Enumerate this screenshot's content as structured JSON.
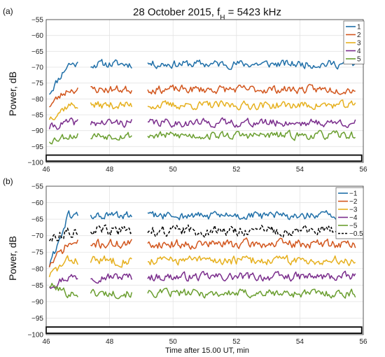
{
  "title": {
    "main": "28 October 2015, f",
    "sub": "H",
    "tail": " = 5423 kHz"
  },
  "colors": {
    "blue": "#1f6fa8",
    "orange": "#d2561d",
    "yellow": "#e6b01e",
    "purple": "#7a2d8c",
    "green": "#6a9e2f",
    "black": "#000000"
  },
  "chart_data": [
    {
      "panel_label": "(a)",
      "type": "line",
      "xlabel": "",
      "ylabel": "Power, dB",
      "xlim": [
        46,
        56
      ],
      "ylim": [
        -100,
        -55
      ],
      "xticks": [
        46,
        48,
        50,
        52,
        54,
        56
      ],
      "yticks": [
        -100,
        -95,
        -90,
        -85,
        -80,
        -75,
        -70,
        -65,
        -60,
        -55
      ],
      "grid": true,
      "legend_position": "top-right",
      "heating_bar": {
        "x_start": 46.0,
        "x_end": 55.95,
        "y_top": -97.7,
        "y_bottom": -99.6
      },
      "segments": [
        [
          46.1,
          47.0
        ],
        [
          47.4,
          48.7
        ],
        [
          49.2,
          55.75
        ]
      ],
      "series": [
        {
          "name": "1",
          "color_key": "blue",
          "dashed": false,
          "start_level": -78,
          "level": -69,
          "jitter": 2.0,
          "seed": 11
        },
        {
          "name": "2",
          "color_key": "orange",
          "dashed": false,
          "start_level": -82,
          "level": -77,
          "jitter": 2.0,
          "seed": 23
        },
        {
          "name": "3",
          "color_key": "yellow",
          "dashed": false,
          "start_level": -86,
          "level": -82,
          "jitter": 2.0,
          "seed": 37
        },
        {
          "name": "4",
          "color_key": "purple",
          "dashed": false,
          "start_level": -89,
          "level": -87.5,
          "jitter": 2.0,
          "seed": 41
        },
        {
          "name": "5",
          "color_key": "green",
          "dashed": false,
          "start_level": -93,
          "level": -91.5,
          "jitter": 2.0,
          "seed": 53
        }
      ]
    },
    {
      "panel_label": "(b)",
      "type": "line",
      "xlabel": "Time after 15.00 UT, min",
      "ylabel": "Power, dB",
      "xlim": [
        46,
        56
      ],
      "ylim": [
        -100,
        -55
      ],
      "xticks": [
        46,
        48,
        50,
        52,
        54,
        56
      ],
      "yticks": [
        -100,
        -95,
        -90,
        -85,
        -80,
        -75,
        -70,
        -65,
        -60,
        -55
      ],
      "grid": true,
      "legend_position": "top-right",
      "heating_bar": {
        "x_start": 46.0,
        "x_end": 55.95,
        "y_top": -97.7,
        "y_bottom": -99.6
      },
      "segments": [
        [
          46.1,
          47.0
        ],
        [
          47.4,
          48.7
        ],
        [
          49.2,
          55.75
        ]
      ],
      "series": [
        {
          "name": "−1",
          "color_key": "blue",
          "dashed": false,
          "start_level": -79,
          "level": -64,
          "jitter": 2.0,
          "seed": 61
        },
        {
          "name": "−2",
          "color_key": "orange",
          "dashed": false,
          "start_level": -79,
          "level": -72.5,
          "jitter": 2.2,
          "seed": 71
        },
        {
          "name": "−3",
          "color_key": "yellow",
          "dashed": false,
          "start_level": -82,
          "level": -77.5,
          "jitter": 2.2,
          "seed": 83
        },
        {
          "name": "−4",
          "color_key": "purple",
          "dashed": false,
          "start_level": -85,
          "level": -82.5,
          "jitter": 2.0,
          "seed": 97
        },
        {
          "name": "−5",
          "color_key": "green",
          "dashed": false,
          "start_level": -85,
          "level": -87.5,
          "jitter": 2.0,
          "seed": 101
        },
        {
          "name": "−0.5",
          "color_key": "black",
          "dashed": true,
          "start_level": -71,
          "level": -68.5,
          "jitter": 2.5,
          "seed": 113
        }
      ]
    }
  ]
}
